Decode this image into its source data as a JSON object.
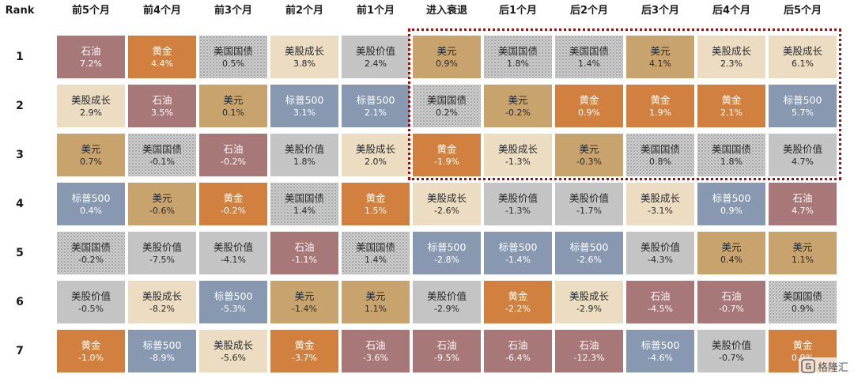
{
  "chart_data": {
    "type": "table",
    "rank_header": "Rank",
    "columns": [
      "前5个月",
      "前4个月",
      "前3个月",
      "前2个月",
      "前1个月",
      "进入衰退",
      "后1个月",
      "后2个月",
      "后3个月",
      "后4个月",
      "后5个月"
    ],
    "ranks": [
      "1",
      "2",
      "3",
      "4",
      "5",
      "6",
      "7"
    ],
    "highlight_columns": [
      "进入衰退",
      "后1个月",
      "后2个月",
      "后3个月",
      "后4个月",
      "后5个月"
    ],
    "highlight_ranks": [
      "1",
      "2",
      "3"
    ],
    "highlight_color": "#c00000",
    "asset_colors": {
      "石油": {
        "fill": "#a87878",
        "text": "light"
      },
      "黄金": {
        "fill": "#d1803f",
        "text": "light"
      },
      "美国国债": {
        "fill": "#cfcfcf",
        "text": "dark",
        "pattern": "dotted"
      },
      "美股成长": {
        "fill": "#ecdcc2",
        "text": "dark"
      },
      "美股价值": {
        "fill": "#c4c4c4",
        "text": "dark"
      },
      "美元": {
        "fill": "#c8a36e",
        "text": "dark"
      },
      "标普500": {
        "fill": "#8798b0",
        "text": "light"
      }
    },
    "cells": [
      [
        [
          "石油",
          "7.2%"
        ],
        [
          "黄金",
          "4.4%"
        ],
        [
          "美国国债",
          "0.5%"
        ],
        [
          "美股成长",
          "3.8%"
        ],
        [
          "美股价值",
          "2.4%"
        ],
        [
          "美元",
          "0.9%"
        ],
        [
          "美国国债",
          "1.8%"
        ],
        [
          "美国国债",
          "1.4%"
        ],
        [
          "美元",
          "4.1%"
        ],
        [
          "美股成长",
          "2.3%"
        ],
        [
          "美股成长",
          "6.1%"
        ]
      ],
      [
        [
          "美股成长",
          "2.9%"
        ],
        [
          "石油",
          "3.5%"
        ],
        [
          "美元",
          "0.1%"
        ],
        [
          "标普500",
          "3.1%"
        ],
        [
          "标普500",
          "2.1%"
        ],
        [
          "美国国债",
          "0.2%"
        ],
        [
          "美元",
          "-0.2%"
        ],
        [
          "黄金",
          "0.9%"
        ],
        [
          "黄金",
          "1.9%"
        ],
        [
          "黄金",
          "2.1%"
        ],
        [
          "标普500",
          "5.7%"
        ]
      ],
      [
        [
          "美元",
          "0.7%"
        ],
        [
          "美国国债",
          "-0.1%"
        ],
        [
          "石油",
          "-0.2%"
        ],
        [
          "美股价值",
          "1.8%"
        ],
        [
          "美股成长",
          "2.0%"
        ],
        [
          "黄金",
          "-1.9%"
        ],
        [
          "美股成长",
          "-1.3%"
        ],
        [
          "美元",
          "-0.3%"
        ],
        [
          "美国国债",
          "0.8%"
        ],
        [
          "美国国债",
          "1.8%"
        ],
        [
          "美股价值",
          "4.7%"
        ]
      ],
      [
        [
          "标普500",
          "0.4%"
        ],
        [
          "美元",
          "-0.6%"
        ],
        [
          "黄金",
          "-0.2%"
        ],
        [
          "美国国债",
          "1.4%"
        ],
        [
          "黄金",
          "1.5%"
        ],
        [
          "美股成长",
          "-2.6%"
        ],
        [
          "美股价值",
          "-1.3%"
        ],
        [
          "美股价值",
          "-1.7%"
        ],
        [
          "美股成长",
          "-3.1%"
        ],
        [
          "标普500",
          "0.9%"
        ],
        [
          "石油",
          "4.7%"
        ]
      ],
      [
        [
          "美国国债",
          "-0.2%"
        ],
        [
          "美股价值",
          "-7.5%"
        ],
        [
          "美股价值",
          "-4.1%"
        ],
        [
          "石油",
          "-1.1%"
        ],
        [
          "美国国债",
          "1.4%"
        ],
        [
          "标普500",
          "-2.8%"
        ],
        [
          "标普500",
          "-1.4%"
        ],
        [
          "标普500",
          "-2.6%"
        ],
        [
          "美股价值",
          "-4.3%"
        ],
        [
          "美元",
          "0.4%"
        ],
        [
          "美元",
          "1.1%"
        ]
      ],
      [
        [
          "美股价值",
          "-0.5%"
        ],
        [
          "美股成长",
          "-8.2%"
        ],
        [
          "标普500",
          "-5.3%"
        ],
        [
          "美元",
          "-1.4%"
        ],
        [
          "美元",
          "1.1%"
        ],
        [
          "美股价值",
          "-2.9%"
        ],
        [
          "黄金",
          "-2.2%"
        ],
        [
          "美股成长",
          "-2.9%"
        ],
        [
          "石油",
          "-4.5%"
        ],
        [
          "石油",
          "-0.7%"
        ],
        [
          "美国国债",
          "0.9%"
        ]
      ],
      [
        [
          "黄金",
          "-1.0%"
        ],
        [
          "标普500",
          "-8.9%"
        ],
        [
          "美股成长",
          "-5.6%"
        ],
        [
          "黄金",
          "-3.7%"
        ],
        [
          "石油",
          "-3.6%"
        ],
        [
          "石油",
          "-9.5%"
        ],
        [
          "石油",
          "-6.4%"
        ],
        [
          "石油",
          "-12.3%"
        ],
        [
          "标普500",
          "-4.6%"
        ],
        [
          "美股价值",
          "-0.7%"
        ],
        [
          "黄金",
          "0.9%"
        ]
      ]
    ]
  },
  "watermark": {
    "text": "格隆汇",
    "icon": "gelonghui-logo-icon"
  }
}
